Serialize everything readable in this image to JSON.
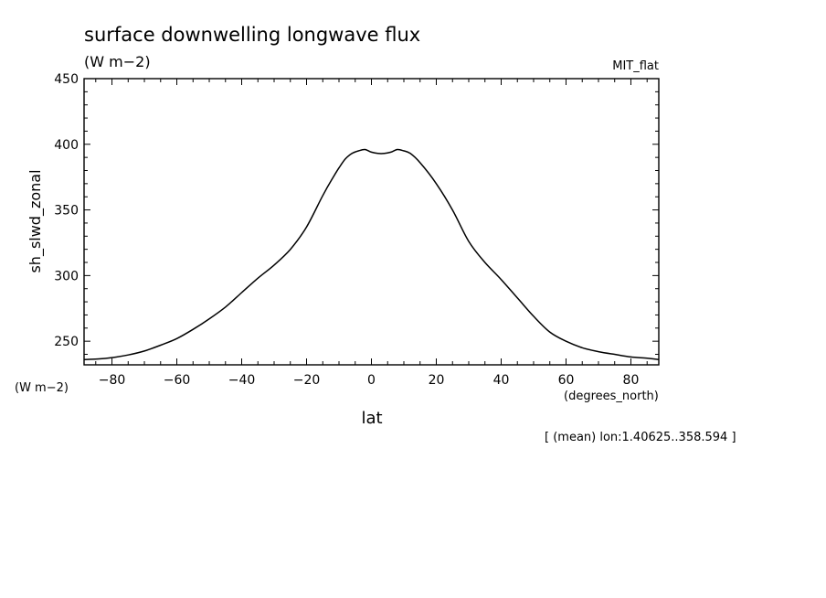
{
  "chart_data": {
    "type": "line",
    "title": "surface downwelling longwave flux",
    "units": "(W m−2)",
    "model": "MIT_flat",
    "ylabel": "sh_slwd_zonal",
    "y_units": "(W m−2)",
    "xlabel": "lat",
    "x_units": "(degrees_north)",
    "footnote": "[ (mean) lon:1.40625..358.594 ]",
    "xlim": [
      -88.6,
      88.6
    ],
    "ylim": [
      232,
      450
    ],
    "x_ticks": [
      -80,
      -60,
      -40,
      -20,
      0,
      20,
      40,
      60,
      80
    ],
    "y_ticks": [
      250,
      300,
      350,
      400,
      450
    ],
    "grid": false,
    "series": [
      {
        "x": [
          -88.6,
          -84,
          -80,
          -75,
          -70,
          -65,
          -60,
          -55,
          -50,
          -45,
          -40,
          -35,
          -30,
          -25,
          -20,
          -15,
          -12,
          -10,
          -8,
          -6,
          -4,
          -2,
          0,
          2,
          4,
          6,
          8,
          10,
          12,
          15,
          20,
          25,
          30,
          35,
          40,
          45,
          50,
          55,
          60,
          65,
          70,
          75,
          80,
          85,
          88.6
        ],
        "y": [
          236,
          236.5,
          237.5,
          239.5,
          242.5,
          247,
          252,
          259,
          267,
          276,
          287,
          298,
          308,
          320,
          337,
          361,
          374,
          382,
          389,
          393,
          395,
          396,
          394,
          393,
          393,
          394,
          396,
          395,
          393,
          386,
          370,
          350,
          326,
          310,
          297,
          283,
          269,
          257,
          250,
          245,
          242,
          240,
          238,
          237,
          236
        ]
      }
    ]
  }
}
